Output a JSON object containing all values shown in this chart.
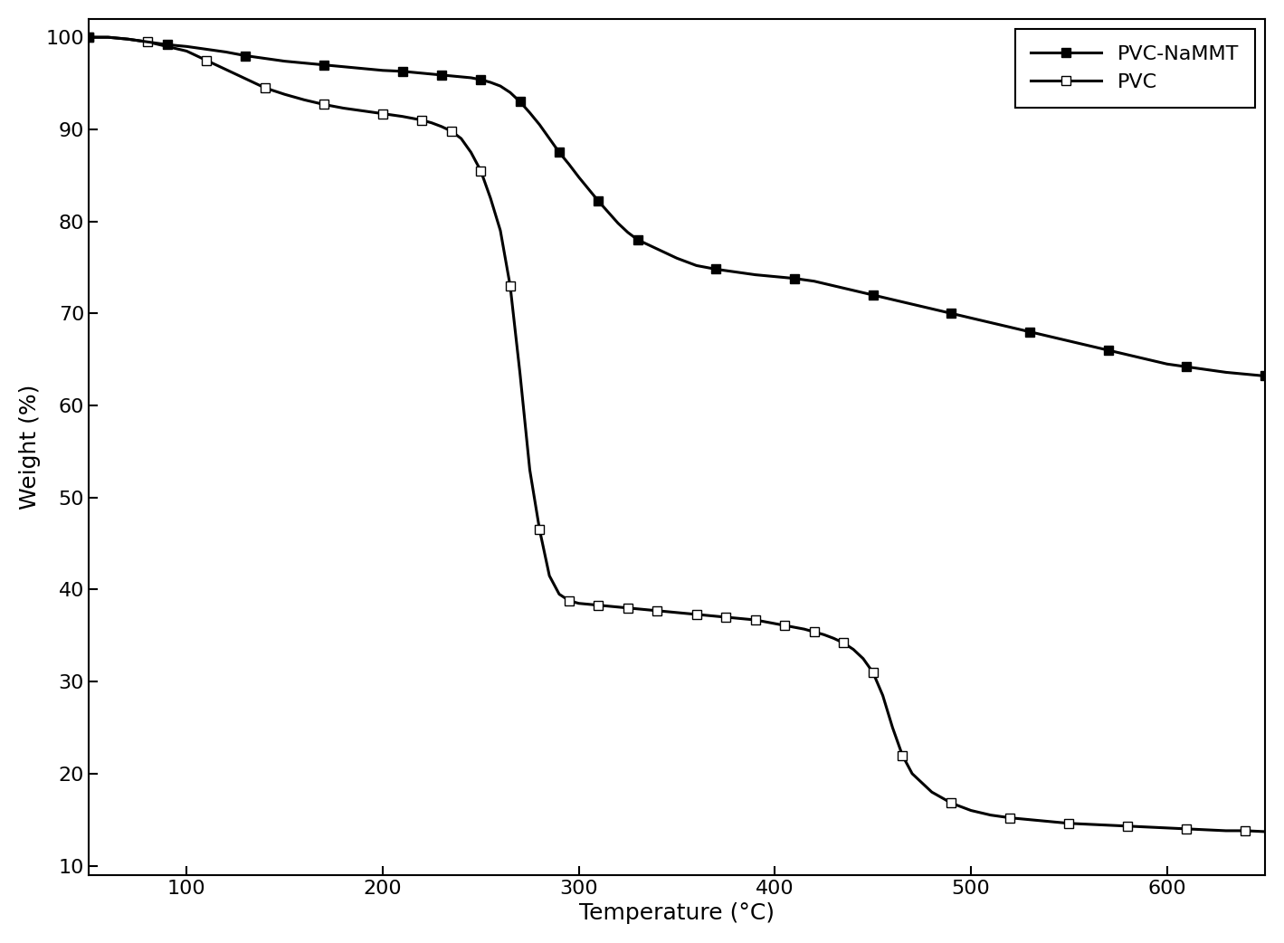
{
  "title": "",
  "xlabel": "Temperature (°C)",
  "ylabel": "Weight (%)",
  "xlim": [
    50,
    650
  ],
  "ylim": [
    9,
    102
  ],
  "yticks": [
    10,
    20,
    30,
    40,
    50,
    60,
    70,
    80,
    90,
    100
  ],
  "xticks": [
    100,
    200,
    300,
    400,
    500,
    600
  ],
  "background_color": "#ffffff",
  "pvc_nammt": {
    "label": "PVC-NaMMT",
    "color": "#000000",
    "x": [
      50,
      60,
      70,
      80,
      90,
      100,
      110,
      120,
      130,
      140,
      150,
      160,
      170,
      180,
      190,
      200,
      210,
      215,
      220,
      225,
      230,
      235,
      240,
      245,
      250,
      255,
      260,
      265,
      270,
      275,
      280,
      285,
      290,
      295,
      300,
      305,
      310,
      315,
      320,
      325,
      330,
      340,
      350,
      360,
      370,
      380,
      390,
      400,
      410,
      420,
      430,
      440,
      450,
      460,
      470,
      480,
      490,
      500,
      510,
      520,
      530,
      540,
      550,
      560,
      570,
      580,
      590,
      600,
      610,
      620,
      630,
      640,
      650
    ],
    "y": [
      100,
      100,
      99.8,
      99.5,
      99.2,
      99.0,
      98.7,
      98.4,
      98.0,
      97.7,
      97.4,
      97.2,
      97.0,
      96.8,
      96.6,
      96.4,
      96.3,
      96.2,
      96.1,
      96.0,
      95.9,
      95.8,
      95.7,
      95.6,
      95.4,
      95.1,
      94.7,
      94.0,
      93.0,
      91.8,
      90.5,
      89.0,
      87.5,
      86.2,
      84.8,
      83.5,
      82.2,
      81.0,
      79.8,
      78.8,
      78.0,
      77.0,
      76.0,
      75.2,
      74.8,
      74.5,
      74.2,
      74.0,
      73.8,
      73.5,
      73.0,
      72.5,
      72.0,
      71.5,
      71.0,
      70.5,
      70.0,
      69.5,
      69.0,
      68.5,
      68.0,
      67.5,
      67.0,
      66.5,
      66.0,
      65.5,
      65.0,
      64.5,
      64.2,
      63.9,
      63.6,
      63.4,
      63.2
    ]
  },
  "pvc": {
    "label": "PVC",
    "color": "#000000",
    "x": [
      50,
      60,
      70,
      80,
      90,
      100,
      110,
      120,
      130,
      140,
      150,
      160,
      170,
      180,
      190,
      200,
      210,
      215,
      220,
      225,
      230,
      235,
      240,
      245,
      250,
      255,
      260,
      265,
      270,
      275,
      280,
      285,
      290,
      295,
      300,
      305,
      310,
      315,
      320,
      325,
      330,
      335,
      340,
      350,
      355,
      360,
      365,
      370,
      375,
      380,
      385,
      390,
      395,
      400,
      405,
      410,
      415,
      420,
      425,
      430,
      435,
      440,
      445,
      450,
      455,
      460,
      465,
      470,
      480,
      490,
      500,
      510,
      520,
      530,
      540,
      550,
      560,
      570,
      580,
      590,
      600,
      610,
      620,
      630,
      640,
      650
    ],
    "y": [
      100,
      100,
      99.8,
      99.5,
      99.0,
      98.5,
      97.5,
      96.5,
      95.5,
      94.5,
      93.8,
      93.2,
      92.7,
      92.3,
      92.0,
      91.7,
      91.4,
      91.2,
      91.0,
      90.7,
      90.3,
      89.8,
      89.0,
      87.5,
      85.5,
      82.5,
      79.0,
      73.0,
      63.5,
      53.0,
      46.5,
      41.5,
      39.5,
      38.8,
      38.5,
      38.4,
      38.3,
      38.2,
      38.1,
      38.0,
      37.9,
      37.8,
      37.7,
      37.5,
      37.4,
      37.3,
      37.2,
      37.1,
      37.0,
      36.9,
      36.8,
      36.7,
      36.5,
      36.3,
      36.1,
      35.9,
      35.7,
      35.4,
      35.1,
      34.7,
      34.2,
      33.5,
      32.5,
      31.0,
      28.5,
      25.0,
      22.0,
      20.0,
      18.0,
      16.8,
      16.0,
      15.5,
      15.2,
      15.0,
      14.8,
      14.6,
      14.5,
      14.4,
      14.3,
      14.2,
      14.1,
      14.0,
      13.9,
      13.8,
      13.8,
      13.7
    ]
  }
}
